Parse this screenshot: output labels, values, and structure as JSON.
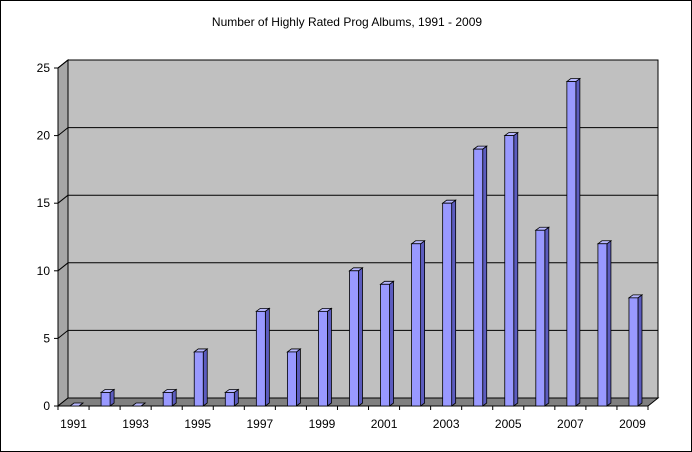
{
  "chart_data": {
    "type": "bar",
    "title": "Number of Highly Rated Prog Albums, 1991 - 2009",
    "xlabel": "",
    "ylabel": "",
    "categories": [
      "1991",
      "1992",
      "1993",
      "1994",
      "1995",
      "1996",
      "1997",
      "1998",
      "1999",
      "2000",
      "2001",
      "2002",
      "2003",
      "2004",
      "2005",
      "2006",
      "2007",
      "2008",
      "2009"
    ],
    "x_tick_labels": [
      "1991",
      "",
      "1993",
      "",
      "1995",
      "",
      "1997",
      "",
      "1999",
      "",
      "2001",
      "",
      "2003",
      "",
      "2005",
      "",
      "2007",
      "",
      "2009"
    ],
    "values": [
      0,
      1,
      0,
      1,
      4,
      1,
      7,
      4,
      7,
      10,
      9,
      12,
      15,
      19,
      20,
      13,
      24,
      12,
      8
    ],
    "ylim": [
      0,
      25
    ],
    "y_ticks": [
      0,
      5,
      10,
      15,
      20,
      25
    ],
    "grid": true,
    "legend": "none",
    "style": "3d-column",
    "colors": {
      "bar_face": "#9999ff",
      "bar_top": "#b8b8ff",
      "bar_side": "#5c5cbf",
      "wall": "#c0c0c0",
      "floor": "#808080",
      "gridline": "#000000"
    }
  }
}
